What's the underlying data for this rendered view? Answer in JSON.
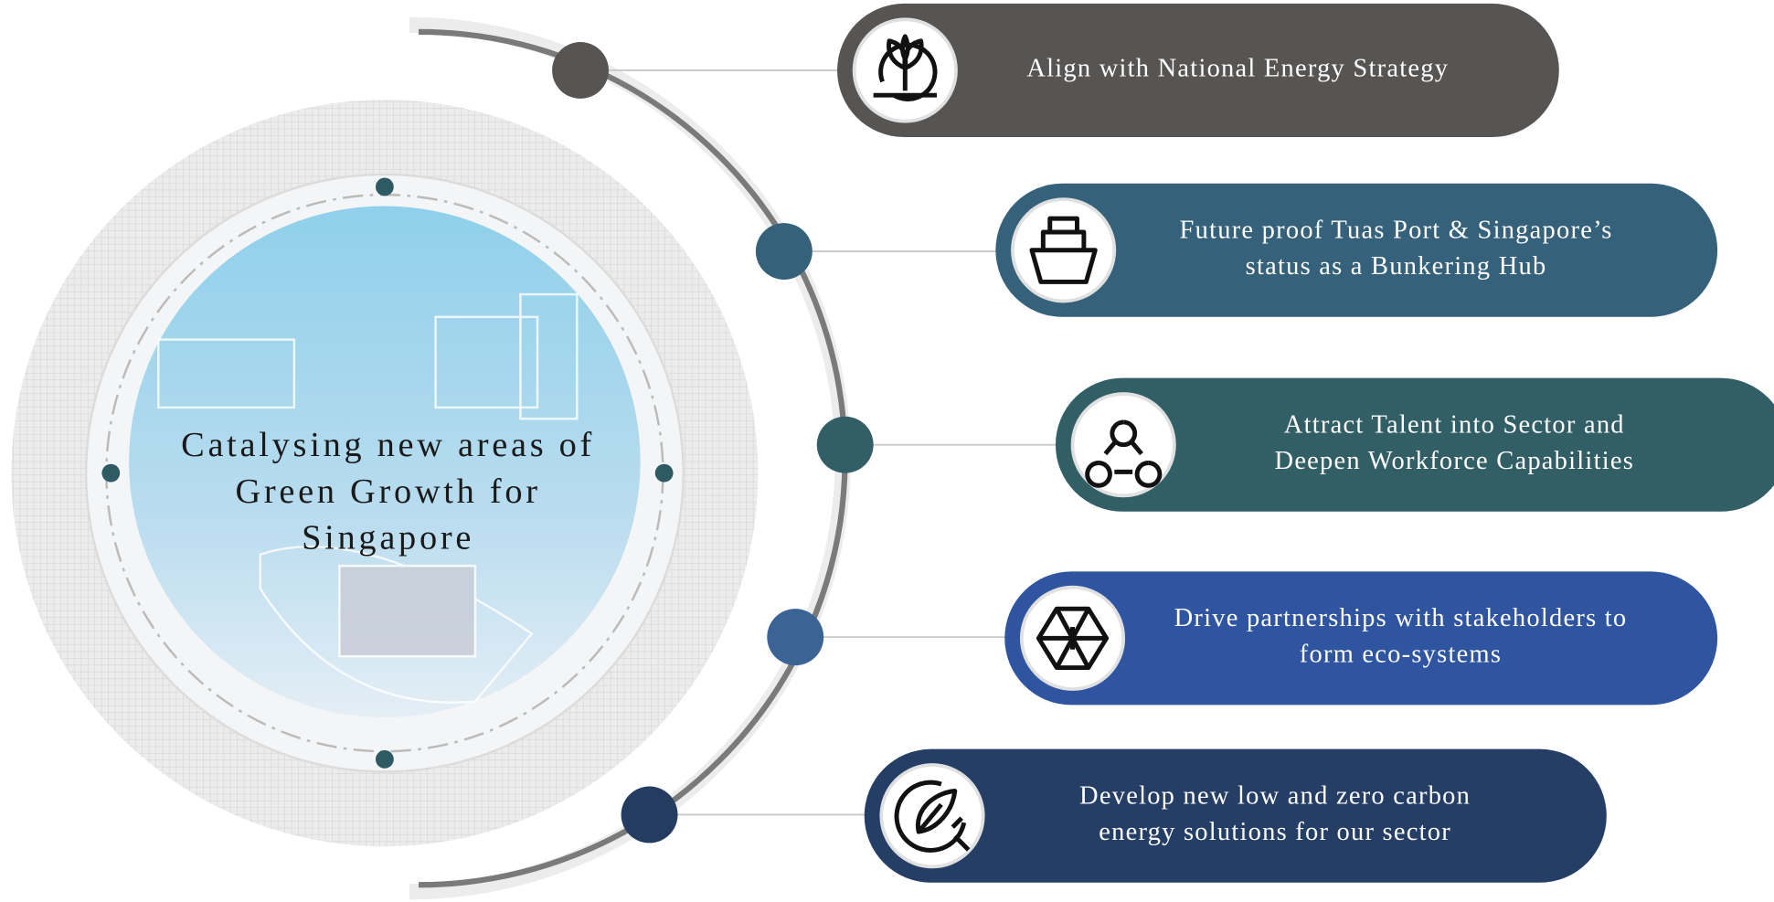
{
  "center": {
    "lines": [
      "Catalysing new areas of",
      "Green Growth for",
      "Singapore"
    ]
  },
  "items": [
    {
      "lines": [
        "Align with National Energy Strategy"
      ]
    },
    {
      "lines": [
        "Future proof Tuas Port & Singapore’s",
        "status as a Bunkering Hub"
      ]
    },
    {
      "lines": [
        "Attract Talent into Sector and",
        "Deepen Workforce Capabilities"
      ]
    },
    {
      "lines": [
        "Drive partnerships with stakeholders to",
        "form eco-systems"
      ]
    },
    {
      "lines": [
        "Develop new low and zero carbon",
        "energy solutions for our sector"
      ]
    }
  ]
}
